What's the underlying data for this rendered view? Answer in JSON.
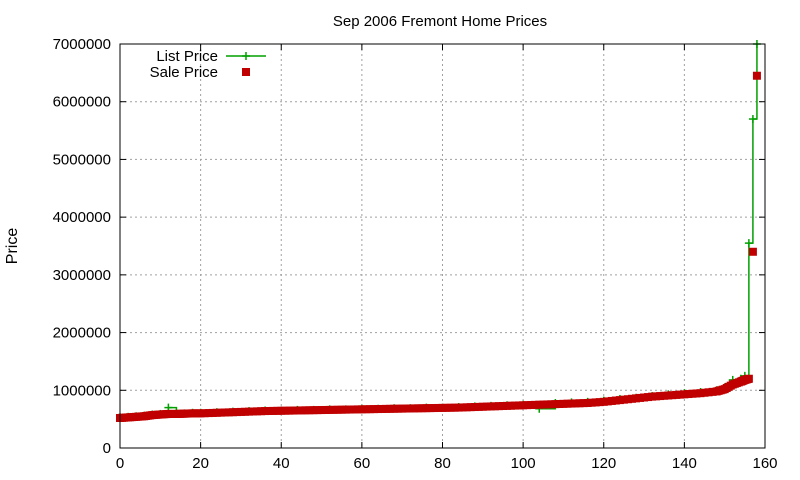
{
  "chart_data": {
    "type": "line",
    "title": "Sep 2006 Fremont Home Prices",
    "xlabel": "",
    "ylabel": "Price",
    "xlim": [
      0,
      160
    ],
    "ylim": [
      0,
      7000000
    ],
    "grid": true,
    "legend_position": "top-left",
    "x_ticks": [
      "0",
      "20",
      "40",
      "60",
      "80",
      "100",
      "120",
      "140",
      "160"
    ],
    "y_ticks": [
      "0",
      "1000000",
      "2000000",
      "3000000",
      "4000000",
      "5000000",
      "6000000",
      "7000000"
    ],
    "x_tick_values": [
      0,
      20,
      40,
      60,
      80,
      100,
      120,
      140,
      160
    ],
    "y_tick_values": [
      0,
      1000000,
      2000000,
      3000000,
      4000000,
      5000000,
      6000000,
      7000000
    ],
    "series": [
      {
        "name": "List Price",
        "color": "#00a000",
        "marker": "plus",
        "x": [
          0,
          2,
          4,
          6,
          8,
          10,
          12,
          14,
          16,
          18,
          20,
          24,
          28,
          32,
          36,
          40,
          44,
          48,
          52,
          56,
          60,
          64,
          68,
          72,
          76,
          80,
          84,
          88,
          92,
          96,
          100,
          104,
          108,
          112,
          116,
          120,
          124,
          128,
          132,
          136,
          140,
          144,
          148,
          150,
          152,
          154,
          155,
          156,
          157,
          158
        ],
        "y": [
          530000,
          540000,
          550000,
          560000,
          580000,
          590000,
          700000,
          600000,
          600000,
          610000,
          610000,
          620000,
          630000,
          640000,
          650000,
          650000,
          660000,
          660000,
          670000,
          670000,
          680000,
          680000,
          690000,
          690000,
          700000,
          700000,
          710000,
          720000,
          730000,
          740000,
          750000,
          680000,
          780000,
          790000,
          800000,
          820000,
          850000,
          870000,
          900000,
          930000,
          950000,
          970000,
          1000000,
          1050000,
          1180000,
          1200000,
          1250000,
          3550000,
          5700000,
          7000000
        ]
      },
      {
        "name": "Sale Price",
        "color": "#c00000",
        "marker": "square",
        "x": [
          0,
          2,
          4,
          6,
          8,
          10,
          12,
          14,
          16,
          18,
          20,
          24,
          28,
          32,
          36,
          40,
          44,
          48,
          52,
          56,
          60,
          64,
          68,
          72,
          76,
          80,
          84,
          88,
          92,
          96,
          100,
          104,
          108,
          112,
          116,
          120,
          124,
          128,
          132,
          136,
          140,
          144,
          148,
          150,
          152,
          154,
          155,
          156,
          157,
          158
        ],
        "y": [
          520000,
          530000,
          540000,
          550000,
          570000,
          580000,
          590000,
          590000,
          595000,
          600000,
          600000,
          610000,
          620000,
          630000,
          640000,
          645000,
          650000,
          655000,
          660000,
          665000,
          670000,
          675000,
          680000,
          685000,
          690000,
          695000,
          700000,
          710000,
          720000,
          730000,
          740000,
          750000,
          760000,
          770000,
          780000,
          800000,
          830000,
          860000,
          890000,
          910000,
          930000,
          950000,
          980000,
          1020000,
          1100000,
          1150000,
          1180000,
          1200000,
          3400000,
          6450000
        ]
      }
    ]
  }
}
